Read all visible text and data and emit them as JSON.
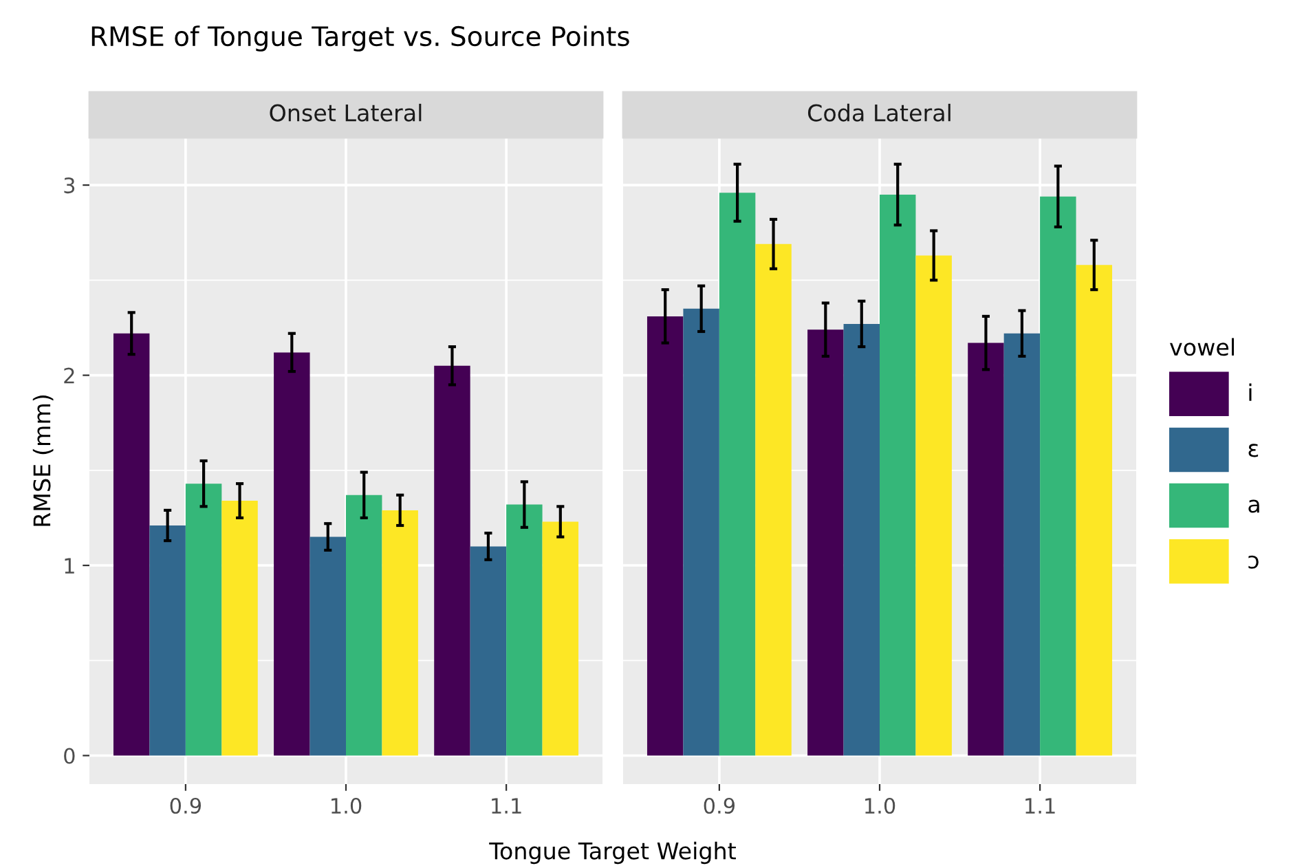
{
  "chart_data": [
    {
      "type": "bar",
      "title": "RMSE of Tongue Target vs. Source Points",
      "subtitle": "Onset Lateral",
      "xlabel": "Tongue Target Weight",
      "ylabel": "RMSE (mm)",
      "legend_title": "vowel",
      "categories": [
        "0.9",
        "1.0",
        "1.1"
      ],
      "ylim": [
        -0.15,
        3.25
      ],
      "yticks": [
        0,
        1,
        2,
        3
      ],
      "grid": true,
      "legend": "right",
      "series": [
        {
          "name": "i",
          "color": "#440154",
          "values": [
            2.22,
            2.12,
            2.05
          ],
          "errors": [
            0.11,
            0.1,
            0.1
          ]
        },
        {
          "name": "ɛ",
          "color": "#31688e",
          "values": [
            1.21,
            1.15,
            1.1
          ],
          "errors": [
            0.08,
            0.07,
            0.07
          ]
        },
        {
          "name": "a",
          "color": "#35b779",
          "values": [
            1.43,
            1.37,
            1.32
          ],
          "errors": [
            0.12,
            0.12,
            0.12
          ]
        },
        {
          "name": "ɔ",
          "color": "#fde725",
          "values": [
            1.34,
            1.29,
            1.23
          ],
          "errors": [
            0.09,
            0.08,
            0.08
          ]
        }
      ]
    },
    {
      "type": "bar",
      "subtitle": "Coda Lateral",
      "categories": [
        "0.9",
        "1.0",
        "1.1"
      ],
      "ylim": [
        -0.15,
        3.25
      ],
      "yticks": [
        0,
        1,
        2,
        3
      ],
      "tick_labels": "x",
      "grid": true,
      "series": [
        {
          "color": "#440154",
          "values": [
            2.31,
            2.24,
            2.17
          ],
          "errors": [
            0.14,
            0.14,
            0.14
          ]
        },
        {
          "color": "#31688e",
          "values": [
            2.35,
            2.27,
            2.22
          ],
          "errors": [
            0.12,
            0.12,
            0.12
          ]
        },
        {
          "color": "#35b779",
          "values": [
            2.96,
            2.95,
            2.94
          ],
          "errors": [
            0.15,
            0.16,
            0.16
          ]
        },
        {
          "color": "#fde725",
          "values": [
            2.69,
            2.63,
            2.58
          ],
          "errors": [
            0.13,
            0.13,
            0.13
          ]
        }
      ]
    }
  ]
}
